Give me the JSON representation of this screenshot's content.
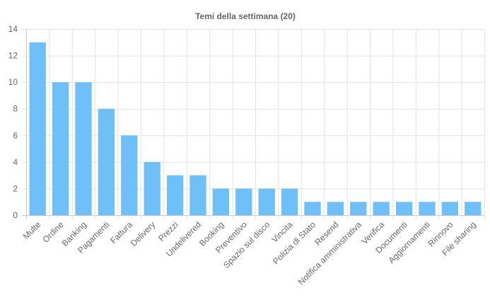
{
  "chart_data": {
    "type": "bar",
    "title": "Temi della settimana (20)",
    "xlabel": "",
    "ylabel": "",
    "ylim": [
      0,
      14
    ],
    "yticks": [
      0,
      2,
      4,
      6,
      8,
      10,
      12,
      14
    ],
    "grid": true,
    "legend": "none",
    "bar_color": "#6fbff9",
    "grid_color": "#e3e3e3",
    "categories": [
      "Multe",
      "Ordine",
      "Banking",
      "Pagamenti",
      "Fattura",
      "Delivery",
      "Prezzi",
      "Undelivered",
      "Booking",
      "Preventivo",
      "Spazio sul disco",
      "Vincita",
      "Polizia di Stato",
      "Resend",
      "Notifica amministrativa",
      "Verifica",
      "Documenti",
      "Aggiornamenti",
      "Rinnovo",
      "File sharing"
    ],
    "values": [
      13,
      10,
      10,
      8,
      6,
      4,
      3,
      3,
      2,
      2,
      2,
      2,
      1,
      1,
      1,
      1,
      1,
      1,
      1,
      1
    ]
  }
}
